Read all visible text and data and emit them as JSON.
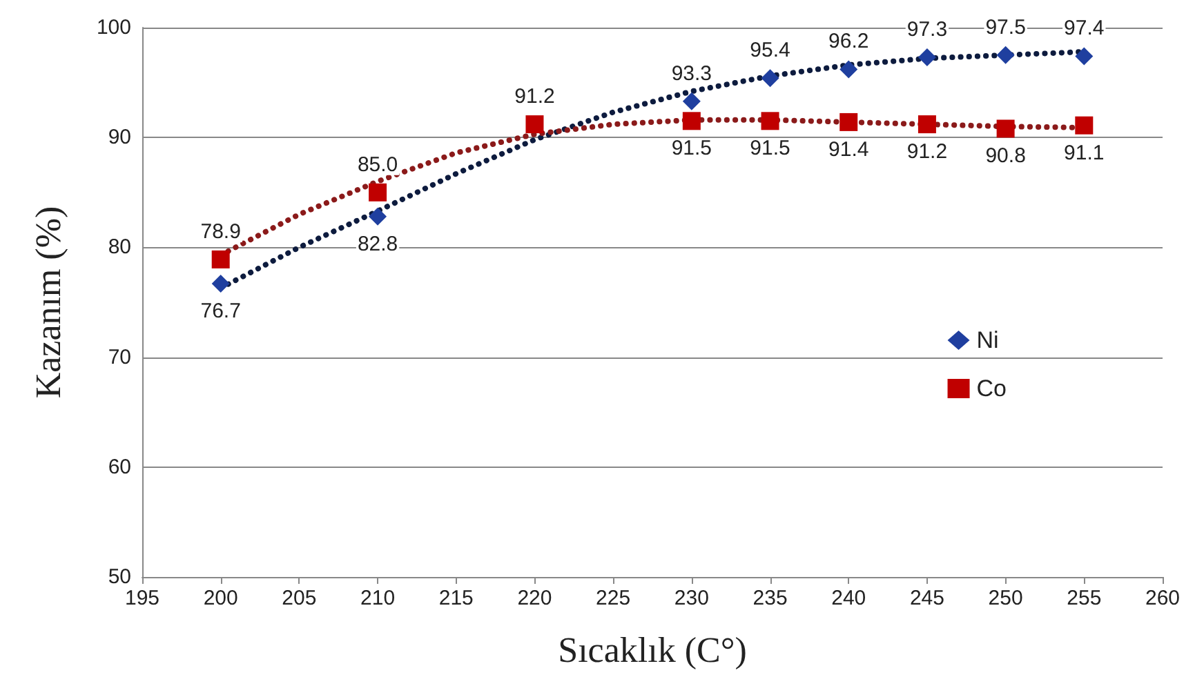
{
  "chart_data": {
    "type": "scatter",
    "xlabel": "Sıcaklık (C°)",
    "ylabel": "Kazanım (%)",
    "xlim": [
      195,
      260
    ],
    "xticks": [
      195,
      200,
      205,
      210,
      215,
      220,
      225,
      230,
      235,
      240,
      245,
      250,
      255,
      260
    ],
    "ylim": [
      50,
      100
    ],
    "yticks": [
      50,
      60,
      70,
      80,
      90,
      100
    ],
    "grid": "y",
    "legend": "right",
    "series": [
      {
        "name": "Ni",
        "marker": "diamond",
        "color": "#1f3f9f",
        "x": [
          200,
          210,
          230,
          235,
          240,
          245,
          250,
          255
        ],
        "values": [
          76.7,
          82.8,
          93.3,
          95.4,
          96.2,
          97.3,
          97.5,
          97.4
        ],
        "value_labels": [
          "76.7",
          "82.8",
          "93.3",
          "95.4",
          "96.2",
          "97.3",
          "97.5",
          "97.4"
        ]
      },
      {
        "name": "Co",
        "marker": "square",
        "color": "#c00000",
        "x": [
          200,
          210,
          220,
          230,
          235,
          240,
          245,
          250,
          255
        ],
        "values": [
          78.9,
          85.0,
          91.2,
          91.5,
          91.5,
          91.4,
          91.2,
          90.8,
          91.1
        ],
        "value_labels": [
          "78.9",
          "85.0",
          "91.2",
          "91.5",
          "91.5",
          "91.4",
          "91.2",
          "90.8",
          "91.1"
        ]
      },
      {
        "type": "line",
        "marker": "none",
        "line_style": "dotted",
        "color": "#0d1b3e",
        "x": [
          200,
          205,
          210,
          215,
          220,
          225,
          230,
          235,
          240,
          245,
          250,
          255
        ],
        "values": [
          76.3,
          80,
          83.3,
          86.7,
          89.8,
          92.3,
          94.2,
          95.6,
          96.6,
          97.2,
          97.5,
          97.8
        ]
      },
      {
        "type": "line",
        "marker": "none",
        "line_style": "dotted",
        "color": "#8b1a1a",
        "x": [
          200,
          205,
          210,
          215,
          220,
          225,
          230,
          235,
          240,
          245,
          250,
          255
        ],
        "values": [
          79.3,
          83,
          86,
          88.6,
          90.3,
          91.2,
          91.6,
          91.6,
          91.4,
          91.2,
          91,
          90.9
        ]
      }
    ]
  }
}
